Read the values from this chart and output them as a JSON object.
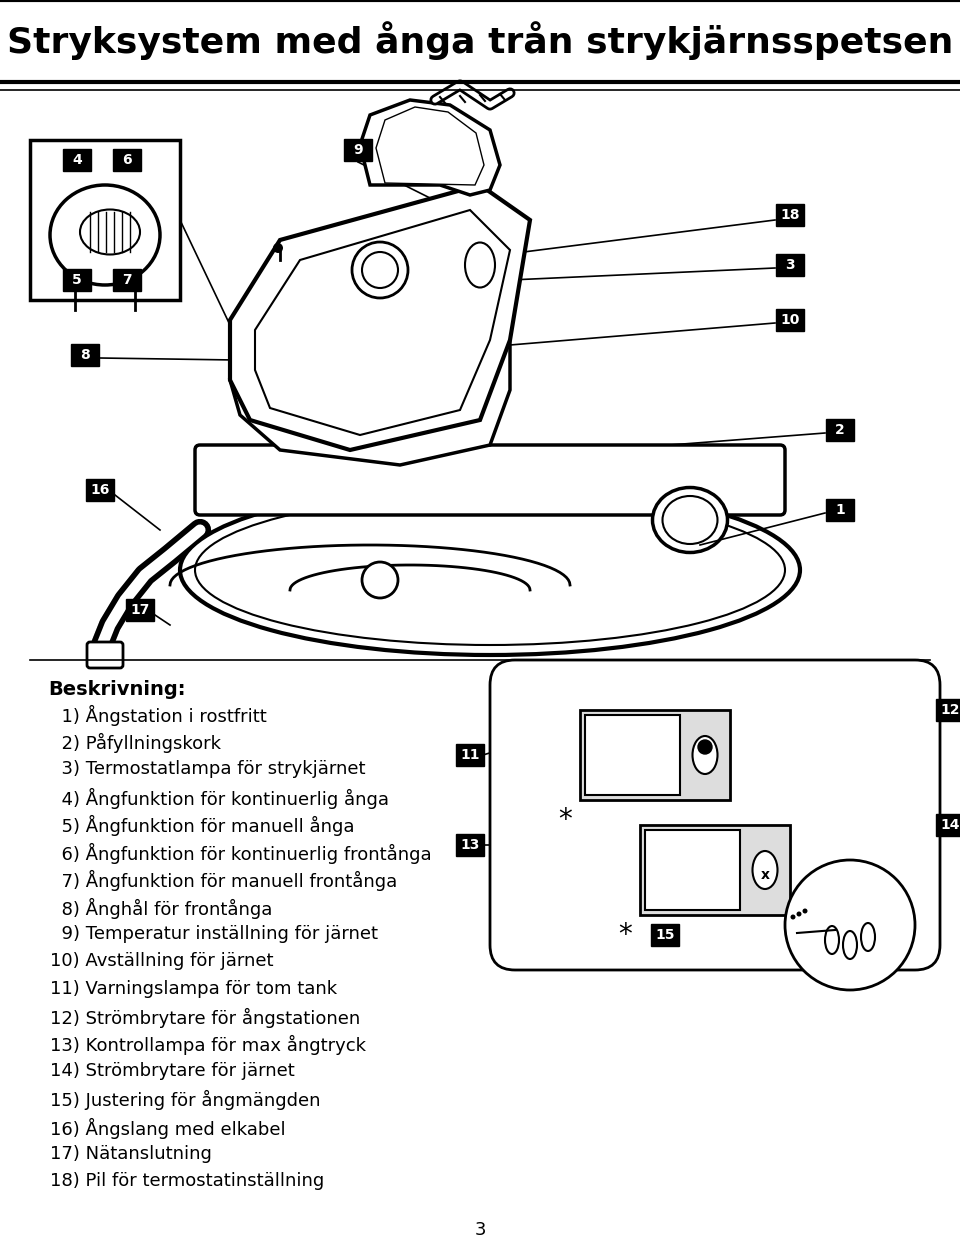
{
  "title": "Stryksystem med ånga trån strykjärnsspetsen",
  "title_fontsize": 26,
  "title_fontweight": "bold",
  "background_color": "#ffffff",
  "text_color": "#000000",
  "beskrivning_header": "Beskrivning:",
  "items": [
    "  1) Ångstation i rostfritt",
    "  2) Påfyllningskork",
    "  3) Termostatlampa för strykjärnet",
    "  4) Ångfunktion för kontinuerlig ånga",
    "  5) Ångfunktion för manuell ånga",
    "  6) Ångfunktion för kontinuerlig frontånga",
    "  7) Ångfunktion för manuell frontånga",
    "  8) Ånghål för frontånga",
    "  9) Temperatur inställning för järnet",
    "10) Avställning för järnet",
    "11) Varningslampa för tom tank",
    "12) Strömbrytare för ångstationen",
    "13) Kontrollampa för max ångtryck",
    "14) Strömbrytare för järnet",
    "15) Justering för ångmängden",
    "16) Ångslang med elkabel",
    "17) Nätanslutning",
    "18) Pil för termostatinställning"
  ],
  "page_number": "3",
  "label_fontsize": 10,
  "item_fontsize": 13,
  "header_fontsize": 14
}
